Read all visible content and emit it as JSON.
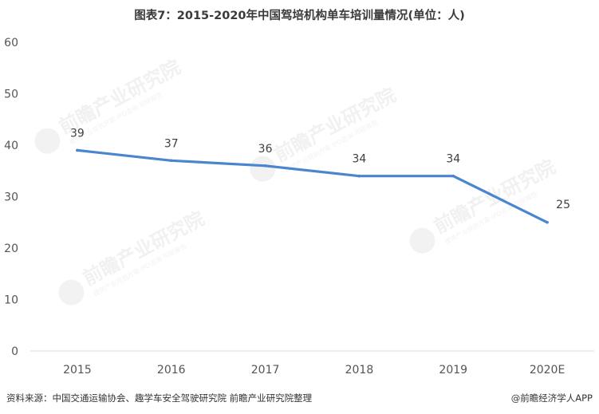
{
  "title": "图表7：2015-2020年中国驾培机构单车培训量情况(单位：人)",
  "source_text": "资料来源：中国交通运输协会、趣学车安全驾驶研究院 前瞻产业研究院整理",
  "credit_text": "@前瞻经济学人APP",
  "watermark": {
    "brand": "前瞻产业研究院",
    "slogan": "提供产业规划方案·IPO咨询·可研报告"
  },
  "colors": {
    "line": "#4a86cf",
    "grid": "#d9d9d9",
    "axis_text": "#555555",
    "label_text": "#404040"
  },
  "chart_data": {
    "type": "line",
    "title": "图表7：2015-2020年中国驾培机构单车培训量情况(单位：人)",
    "categories": [
      "2015",
      "2016",
      "2017",
      "2018",
      "2019",
      "2020E"
    ],
    "series": [
      {
        "values": [
          39,
          37,
          36,
          34,
          34,
          25
        ]
      }
    ],
    "y_ticks": [
      "0",
      "10",
      "20",
      "30",
      "40",
      "50",
      "60"
    ],
    "ylim": [
      0,
      60
    ],
    "data_labels": [
      "39",
      "37",
      "36",
      "34",
      "34",
      "25"
    ],
    "grid": false,
    "legend": "none"
  }
}
